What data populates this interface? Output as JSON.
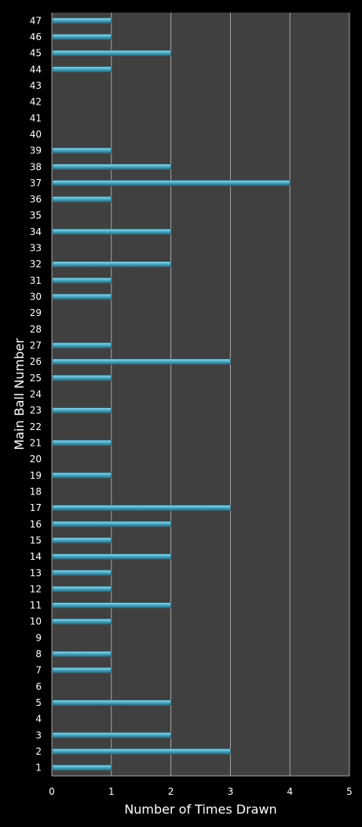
{
  "chart_data": {
    "type": "bar",
    "orientation": "horizontal",
    "xlabel": "Number of Times Drawn",
    "ylabel": "Main Ball Number",
    "xlim": [
      0,
      5
    ],
    "x_ticks": [
      0,
      1,
      2,
      3,
      4,
      5
    ],
    "categories": [
      "1",
      "2",
      "3",
      "4",
      "5",
      "6",
      "7",
      "8",
      "9",
      "10",
      "11",
      "12",
      "13",
      "14",
      "15",
      "16",
      "17",
      "18",
      "19",
      "20",
      "21",
      "22",
      "23",
      "24",
      "25",
      "26",
      "27",
      "28",
      "29",
      "30",
      "31",
      "32",
      "33",
      "34",
      "35",
      "36",
      "37",
      "38",
      "39",
      "40",
      "41",
      "42",
      "43",
      "44",
      "45",
      "46",
      "47"
    ],
    "values": [
      1,
      3,
      2,
      0,
      2,
      0,
      1,
      1,
      0,
      1,
      2,
      1,
      1,
      2,
      1,
      2,
      3,
      0,
      1,
      0,
      1,
      0,
      1,
      0,
      1,
      3,
      1,
      0,
      0,
      1,
      1,
      2,
      0,
      2,
      0,
      1,
      4,
      2,
      1,
      0,
      0,
      0,
      0,
      1,
      2,
      1,
      1
    ],
    "grid": "vertical",
    "colors": {
      "background": "#000000",
      "plot_area": "#404040",
      "gridline": "#a6a6a6",
      "bar": "#4bacc6",
      "bar_highlight": "#9fd7e8",
      "bar_shadow": "#21657a",
      "text": "#ffffff"
    }
  }
}
